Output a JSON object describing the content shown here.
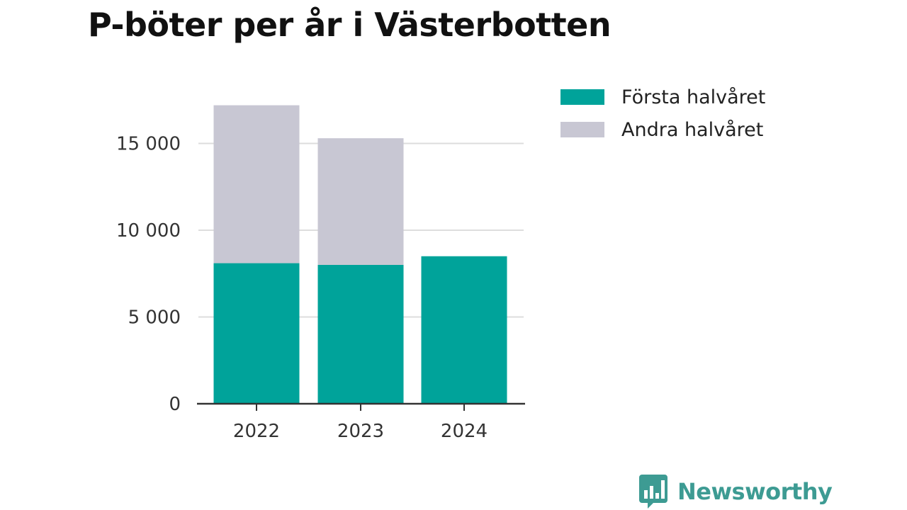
{
  "colors": {
    "first_half": "#00a39a",
    "second_half": "#c8c7d3",
    "grid": "#dddddd",
    "axis": "#333333",
    "brand": "#3d9b93"
  },
  "brand": {
    "name": "Newsworthy",
    "icon": "bar-chart-speech-bubble-icon"
  },
  "chart_data": {
    "type": "bar",
    "stacked": true,
    "title": "P-böter per år i Västerbotten",
    "xlabel": "",
    "ylabel": "",
    "categories": [
      "2022",
      "2023",
      "2024"
    ],
    "series": [
      {
        "name": "Första halvåret",
        "values": [
          8100,
          8000,
          8500
        ]
      },
      {
        "name": "Andra halvåret",
        "values": [
          9100,
          7300,
          0
        ]
      }
    ],
    "ylim": [
      0,
      17200
    ],
    "yticks": [
      0,
      5000,
      10000,
      15000
    ],
    "ytick_labels": [
      "0",
      "5 000",
      "10 000",
      "15 000"
    ],
    "grid": true,
    "legend": "top-right"
  }
}
